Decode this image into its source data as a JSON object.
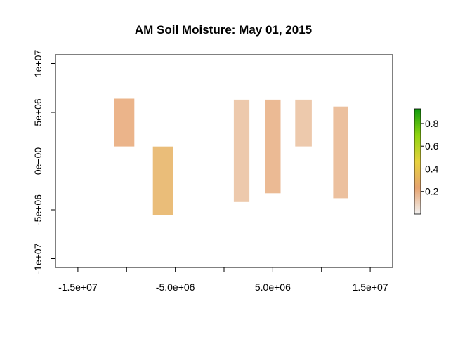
{
  "chart_data": {
    "type": "heatmap",
    "title": "AM Soil Moisture: May 01, 2015",
    "xlabel": "",
    "ylabel": "",
    "xlim": [
      -17300000,
      17300000
    ],
    "ylim": [
      -10900000,
      10900000
    ],
    "x_ticks": [
      {
        "value": -15000000,
        "label": "-1.5e+07"
      },
      {
        "value": -10000000,
        "label": ""
      },
      {
        "value": -5000000,
        "label": "-5.0e+06"
      },
      {
        "value": 0,
        "label": ""
      },
      {
        "value": 5000000,
        "label": "5.0e+06"
      },
      {
        "value": 10000000,
        "label": ""
      },
      {
        "value": 15000000,
        "label": "1.5e+07"
      }
    ],
    "y_ticks": [
      {
        "value": -10000000,
        "label": "-1e+07"
      },
      {
        "value": -5000000,
        "label": "-5e+06"
      },
      {
        "value": 0,
        "label": "0e+00"
      },
      {
        "value": 5000000,
        "label": "5e+06"
      },
      {
        "value": 10000000,
        "label": "1e+07"
      }
    ],
    "legend": {
      "position": "right",
      "min": 0.0,
      "max": 0.93,
      "ticks": [
        {
          "value": 0.2,
          "label": "0.2"
        },
        {
          "value": 0.4,
          "label": "0.4"
        },
        {
          "value": 0.6,
          "label": "0.6"
        },
        {
          "value": 0.8,
          "label": "0.8"
        }
      ],
      "colors": [
        "#f2f2f2",
        "#e6a36f",
        "#e7d23e",
        "#8fd40f",
        "#0e9b0e"
      ]
    },
    "swaths": [
      {
        "x0": -11300000,
        "x1": -9200000,
        "y0": 1500000,
        "y1": 6400000,
        "value": 0.22
      },
      {
        "x0": -7300000,
        "x1": -5200000,
        "y0": -5500000,
        "y1": 1500000,
        "value": 0.3
      },
      {
        "x0": 1000000,
        "x1": 2600000,
        "y0": -4200000,
        "y1": 6300000,
        "value": 0.15
      },
      {
        "x0": 4200000,
        "x1": 5800000,
        "y0": -3300000,
        "y1": 6300000,
        "value": 0.2
      },
      {
        "x0": 7300000,
        "x1": 9000000,
        "y0": 1500000,
        "y1": 6300000,
        "value": 0.15
      },
      {
        "x0": 11200000,
        "x1": 12700000,
        "y0": -3800000,
        "y1": 5600000,
        "value": 0.18
      }
    ]
  }
}
